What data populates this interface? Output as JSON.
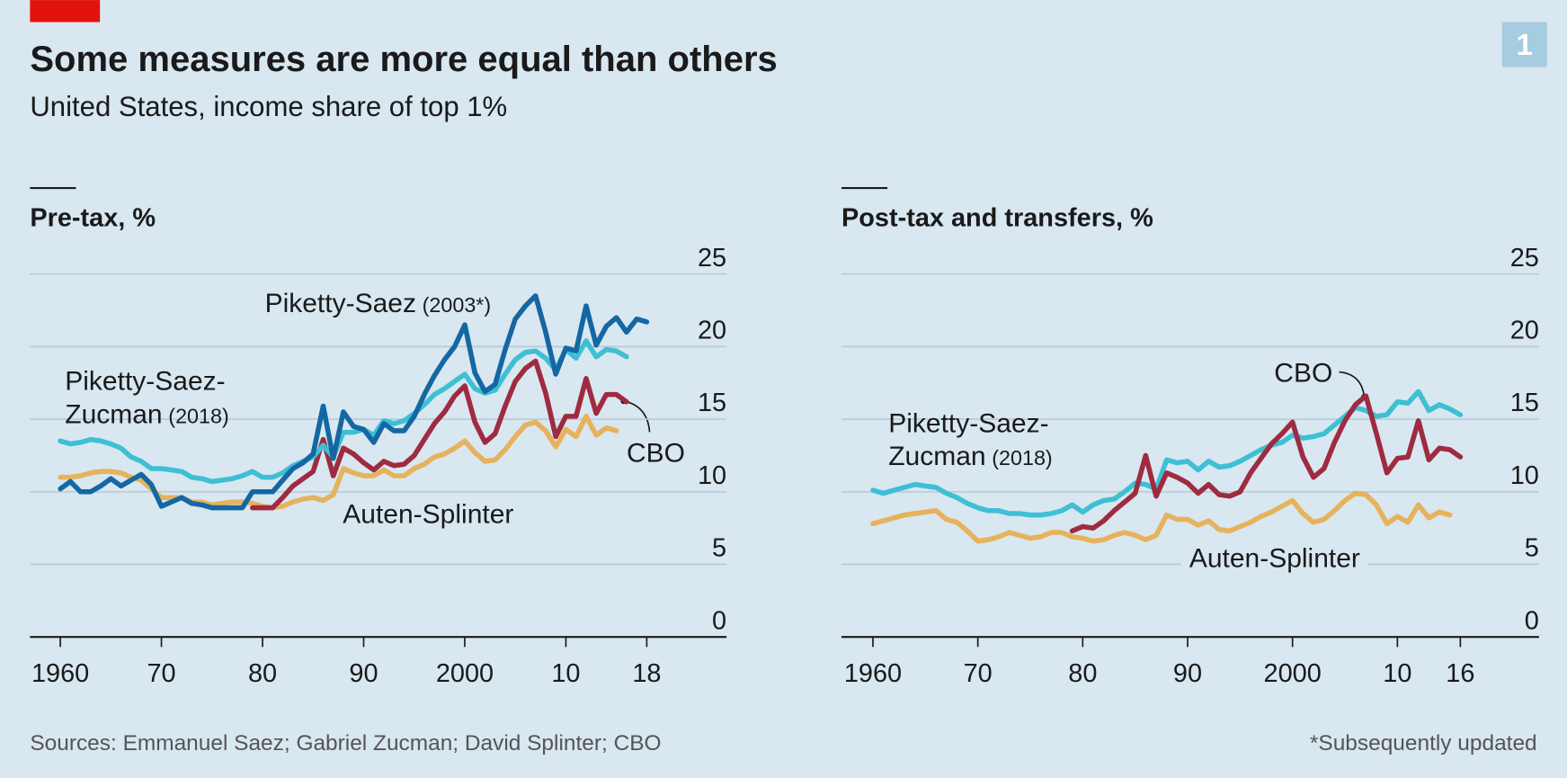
{
  "title": "Some measures are more equal than others",
  "subtitle": "United States, income share of top 1%",
  "badge": "1",
  "source": "Sources: Emmanuel Saez; Gabriel Zucman; David Splinter; CBO",
  "footnote": "*Subsequently updated",
  "chart_data": [
    {
      "type": "line",
      "title": "Pre-tax, %",
      "x": [
        1960,
        1961,
        1962,
        1963,
        1964,
        1965,
        1966,
        1967,
        1968,
        1969,
        1970,
        1971,
        1972,
        1973,
        1974,
        1975,
        1976,
        1977,
        1978,
        1979,
        1980,
        1981,
        1982,
        1983,
        1984,
        1985,
        1986,
        1987,
        1988,
        1989,
        1990,
        1991,
        1992,
        1993,
        1994,
        1995,
        1996,
        1997,
        1998,
        1999,
        2000,
        2001,
        2002,
        2003,
        2004,
        2005,
        2006,
        2007,
        2008,
        2009,
        2010,
        2011,
        2012,
        2013,
        2014,
        2015,
        2016,
        2017,
        2018
      ],
      "xlim": [
        1957,
        2025
      ],
      "xticks": [
        1960,
        {
          "value": 1970,
          "label": "70"
        },
        {
          "value": 1980,
          "label": "80"
        },
        {
          "value": 1990,
          "label": "90"
        },
        2000,
        {
          "value": 2010,
          "label": "10"
        },
        {
          "value": 2018,
          "label": "18"
        }
      ],
      "ylim": [
        0,
        25
      ],
      "yticks": [
        0,
        5,
        10,
        15,
        20,
        25
      ],
      "grid": true,
      "series": [
        {
          "name_lines": [
            "Auten-Splinter"
          ],
          "color": "#e6b25c",
          "values": [
            11.0,
            11.0,
            11.1,
            11.3,
            11.4,
            11.4,
            11.3,
            11.0,
            10.8,
            10.2,
            9.6,
            9.6,
            9.6,
            9.3,
            9.3,
            9.1,
            9.2,
            9.3,
            9.3,
            9.2,
            9.0,
            8.9,
            9.0,
            9.3,
            9.5,
            9.6,
            9.4,
            9.8,
            11.6,
            11.3,
            11.1,
            11.1,
            11.5,
            11.1,
            11.1,
            11.6,
            11.9,
            12.4,
            12.6,
            13.0,
            13.5,
            12.7,
            12.1,
            12.2,
            12.9,
            13.8,
            14.6,
            14.8,
            14.2,
            13.1,
            14.3,
            13.8,
            15.2,
            13.9,
            14.4,
            14.2,
            null,
            null,
            null
          ]
        },
        {
          "name_lines": [
            "CBO"
          ],
          "color": "#9e2b40",
          "values": [
            null,
            null,
            null,
            null,
            null,
            null,
            null,
            null,
            null,
            null,
            null,
            null,
            null,
            null,
            null,
            null,
            null,
            null,
            null,
            8.9,
            8.9,
            8.9,
            9.6,
            10.4,
            10.9,
            11.4,
            13.6,
            11.1,
            13.0,
            12.6,
            12.0,
            11.5,
            12.1,
            11.8,
            11.9,
            12.5,
            13.6,
            14.7,
            15.5,
            16.6,
            17.3,
            14.8,
            13.4,
            14.0,
            15.9,
            17.6,
            18.5,
            19.0,
            16.8,
            13.8,
            15.2,
            15.2,
            17.8,
            15.4,
            16.7,
            16.7,
            16.2,
            null,
            null
          ]
        },
        {
          "name_lines": [
            "Piketty-Saez-",
            "Zucman"
          ],
          "note": "(2018)",
          "color": "#3ebfd4",
          "values": [
            13.5,
            13.3,
            13.4,
            13.6,
            13.5,
            13.3,
            13.0,
            12.4,
            12.1,
            11.6,
            11.6,
            11.5,
            11.4,
            11.0,
            10.9,
            10.7,
            10.8,
            10.9,
            11.1,
            11.4,
            11.0,
            11.0,
            11.3,
            11.8,
            12.1,
            12.4,
            13.2,
            12.4,
            14.1,
            14.1,
            14.3,
            13.9,
            14.9,
            14.7,
            14.9,
            15.4,
            16.0,
            16.7,
            17.1,
            17.6,
            18.1,
            17.1,
            16.8,
            17.0,
            18.1,
            19.1,
            19.6,
            19.7,
            19.2,
            18.4,
            19.8,
            19.2,
            20.4,
            19.3,
            19.8,
            19.7,
            19.3,
            null,
            null
          ]
        },
        {
          "name_lines": [
            "Piketty-Saez"
          ],
          "note": "(2003*)",
          "color": "#1467a3",
          "values": [
            10.2,
            10.7,
            10.0,
            10.0,
            10.4,
            10.9,
            10.4,
            10.8,
            11.2,
            10.5,
            9.0,
            9.3,
            9.6,
            9.2,
            9.1,
            8.9,
            8.9,
            8.9,
            8.9,
            10.0,
            10.0,
            10.0,
            10.8,
            11.6,
            12.0,
            12.6,
            15.9,
            12.3,
            15.5,
            14.5,
            14.3,
            13.4,
            14.7,
            14.2,
            14.2,
            15.2,
            16.7,
            18.0,
            19.1,
            20.0,
            21.5,
            18.2,
            16.9,
            17.4,
            19.8,
            21.9,
            22.8,
            23.5,
            21.0,
            18.1,
            19.9,
            19.7,
            22.8,
            20.1,
            21.4,
            22.0,
            21.0,
            21.9,
            21.7
          ]
        }
      ]
    },
    {
      "type": "line",
      "title": "Post-tax and transfers, %",
      "x": [
        1960,
        1961,
        1962,
        1963,
        1964,
        1965,
        1966,
        1967,
        1968,
        1969,
        1970,
        1971,
        1972,
        1973,
        1974,
        1975,
        1976,
        1977,
        1978,
        1979,
        1980,
        1981,
        1982,
        1983,
        1984,
        1985,
        1986,
        1987,
        1988,
        1989,
        1990,
        1991,
        1992,
        1993,
        1994,
        1995,
        1996,
        1997,
        1998,
        1999,
        2000,
        2001,
        2002,
        2003,
        2004,
        2005,
        2006,
        2007,
        2008,
        2009,
        2010,
        2011,
        2012,
        2013,
        2014,
        2015,
        2016
      ],
      "xlim": [
        1957,
        2023.5
      ],
      "xticks": [
        1960,
        {
          "value": 1970,
          "label": "70"
        },
        {
          "value": 1980,
          "label": "80"
        },
        {
          "value": 1990,
          "label": "90"
        },
        2000,
        {
          "value": 2010,
          "label": "10"
        },
        {
          "value": 2016,
          "label": "16"
        }
      ],
      "ylim": [
        0,
        25
      ],
      "yticks": [
        0,
        5,
        10,
        15,
        20,
        25
      ],
      "grid": true,
      "series": [
        {
          "name_lines": [
            "Auten-Splinter"
          ],
          "color": "#e6b25c",
          "values": [
            7.8,
            8.0,
            8.2,
            8.4,
            8.5,
            8.6,
            8.7,
            8.1,
            7.9,
            7.3,
            6.6,
            6.7,
            6.9,
            7.2,
            7.0,
            6.8,
            6.9,
            7.2,
            7.2,
            6.9,
            6.8,
            6.6,
            6.7,
            7.0,
            7.2,
            7.0,
            6.7,
            7.0,
            8.4,
            8.1,
            8.1,
            7.7,
            8.0,
            7.4,
            7.3,
            7.6,
            7.9,
            8.3,
            8.6,
            9.0,
            9.4,
            8.5,
            7.9,
            8.1,
            8.7,
            9.4,
            9.9,
            9.8,
            9.1,
            7.8,
            8.3,
            7.9,
            9.1,
            8.2,
            8.6,
            8.4,
            null
          ]
        },
        {
          "name_lines": [
            "Piketty-Saez-",
            "Zucman"
          ],
          "note": "(2018)",
          "color": "#3ebfd4",
          "values": [
            10.1,
            9.9,
            10.1,
            10.3,
            10.5,
            10.4,
            10.3,
            9.9,
            9.6,
            9.2,
            8.9,
            8.7,
            8.7,
            8.5,
            8.5,
            8.4,
            8.4,
            8.5,
            8.7,
            9.1,
            8.6,
            9.1,
            9.4,
            9.5,
            10.0,
            10.6,
            10.5,
            10.2,
            12.2,
            12.0,
            12.1,
            11.5,
            12.1,
            11.7,
            11.8,
            12.1,
            12.5,
            12.9,
            13.2,
            13.4,
            13.9,
            13.7,
            13.8,
            14.0,
            14.6,
            15.2,
            15.8,
            15.6,
            15.2,
            15.3,
            16.2,
            16.1,
            16.9,
            15.6,
            16.0,
            15.7,
            15.3
          ]
        },
        {
          "name_lines": [
            "CBO"
          ],
          "color": "#9e2b40",
          "values": [
            null,
            null,
            null,
            null,
            null,
            null,
            null,
            null,
            null,
            null,
            null,
            null,
            null,
            null,
            null,
            null,
            null,
            null,
            null,
            7.3,
            7.6,
            7.5,
            8.0,
            8.7,
            9.3,
            9.9,
            12.5,
            9.7,
            11.3,
            11.0,
            10.6,
            9.9,
            10.5,
            9.8,
            9.7,
            10.0,
            11.3,
            12.3,
            13.3,
            14.0,
            14.8,
            12.4,
            11.0,
            11.6,
            13.4,
            14.9,
            16.0,
            16.6,
            14.0,
            11.3,
            12.3,
            12.4,
            14.9,
            12.2,
            13.0,
            12.9,
            12.4
          ]
        }
      ]
    }
  ]
}
